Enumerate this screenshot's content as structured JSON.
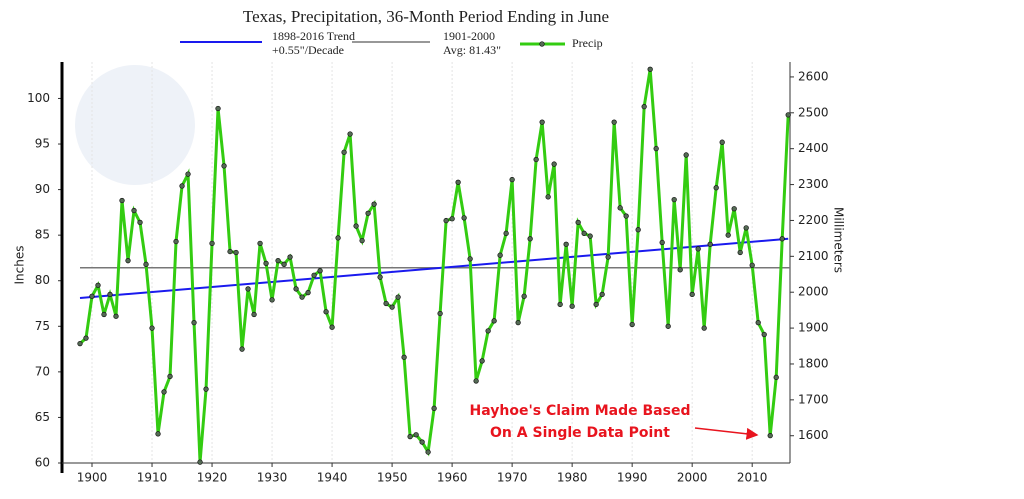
{
  "chart_data": {
    "type": "line",
    "title": "Texas, Precipitation, 36-Month Period Ending in June",
    "y_label": "Inches",
    "y2_label": "Millimeters",
    "x": [
      1898,
      1899,
      1900,
      1901,
      1902,
      1903,
      1904,
      1905,
      1906,
      1907,
      1908,
      1909,
      1910,
      1911,
      1912,
      1913,
      1914,
      1915,
      1916,
      1917,
      1918,
      1919,
      1920,
      1921,
      1922,
      1923,
      1924,
      1925,
      1926,
      1927,
      1928,
      1929,
      1930,
      1931,
      1932,
      1933,
      1934,
      1935,
      1936,
      1937,
      1938,
      1939,
      1940,
      1941,
      1942,
      1943,
      1944,
      1945,
      1946,
      1947,
      1948,
      1949,
      1950,
      1951,
      1952,
      1953,
      1954,
      1955,
      1956,
      1957,
      1958,
      1959,
      1960,
      1961,
      1962,
      1963,
      1964,
      1965,
      1966,
      1967,
      1968,
      1969,
      1970,
      1971,
      1972,
      1973,
      1974,
      1975,
      1976,
      1977,
      1978,
      1979,
      1980,
      1981,
      1982,
      1983,
      1984,
      1985,
      1986,
      1987,
      1988,
      1989,
      1990,
      1991,
      1992,
      1993,
      1994,
      1995,
      1996,
      1997,
      1998,
      1999,
      2000,
      2001,
      2002,
      2003,
      2004,
      2005,
      2006,
      2007,
      2008,
      2009,
      2010,
      2011,
      2012,
      2013,
      2014,
      2015,
      2016
    ],
    "series": [
      {
        "name": "Precip",
        "color": "#33cc11",
        "values": [
          73.1,
          73.7,
          78.3,
          79.5,
          76.3,
          78.5,
          76.1,
          88.8,
          82.2,
          87.7,
          86.4,
          81.8,
          74.8,
          63.2,
          67.8,
          69.5,
          84.3,
          90.4,
          91.7,
          75.4,
          60.1,
          68.1,
          84.1,
          98.9,
          92.6,
          83.2,
          83.1,
          72.5,
          79.1,
          76.3,
          84.1,
          81.9,
          77.9,
          82.2,
          81.8,
          82.6,
          79.1,
          78.2,
          78.7,
          80.6,
          81.1,
          76.6,
          74.9,
          84.7,
          94.1,
          96.1,
          86.0,
          84.4,
          87.4,
          88.4,
          80.4,
          77.5,
          77.1,
          78.2,
          71.6,
          62.9,
          63.1,
          62.3,
          61.2,
          66.0,
          76.4,
          86.6,
          86.8,
          90.8,
          86.9,
          82.4,
          69.0,
          71.2,
          74.5,
          75.6,
          82.8,
          85.2,
          91.1,
          75.4,
          78.3,
          84.6,
          93.3,
          97.4,
          89.2,
          92.8,
          77.4,
          84.0,
          77.2,
          86.4,
          85.2,
          84.9,
          77.4,
          78.5,
          82.6,
          97.4,
          88.0,
          87.1,
          75.2,
          85.6,
          99.1,
          103.2,
          94.5,
          84.2,
          75.0,
          88.9,
          81.2,
          93.8,
          78.5,
          83.5,
          74.8,
          84.0,
          90.2,
          95.2,
          85.0,
          87.9,
          83.1,
          85.8,
          81.7,
          75.4,
          74.1,
          63.0,
          69.4,
          84.6,
          98.2
        ]
      }
    ],
    "trend": {
      "name": "1898-2016 Trend",
      "rate": "+0.55\"/Decade",
      "color": "#1a1aee",
      "x": [
        1898,
        2016
      ],
      "values": [
        78.1,
        84.6
      ]
    },
    "average": {
      "name": "1901-2000",
      "label": "Avg: 81.43\"",
      "color": "#777777",
      "value": 81.43
    },
    "annotation": {
      "lines": [
        "Hayhoe's Claim Made Based",
        "On A Single Data Point"
      ],
      "color": "#e8141e"
    },
    "xlim": [
      1895,
      2016.3
    ],
    "xticks": [
      1900,
      1910,
      1920,
      1930,
      1940,
      1950,
      1960,
      1970,
      1980,
      1990,
      2000,
      2010
    ],
    "ylim": [
      60,
      104
    ],
    "yticks": [
      60,
      65,
      70,
      75,
      80,
      85,
      90,
      95,
      100
    ],
    "y2lim": [
      1524,
      2641.6
    ],
    "y2ticks": [
      1600,
      1700,
      1800,
      1900,
      2000,
      2100,
      2200,
      2300,
      2400,
      2500,
      2600
    ],
    "grid": true
  }
}
